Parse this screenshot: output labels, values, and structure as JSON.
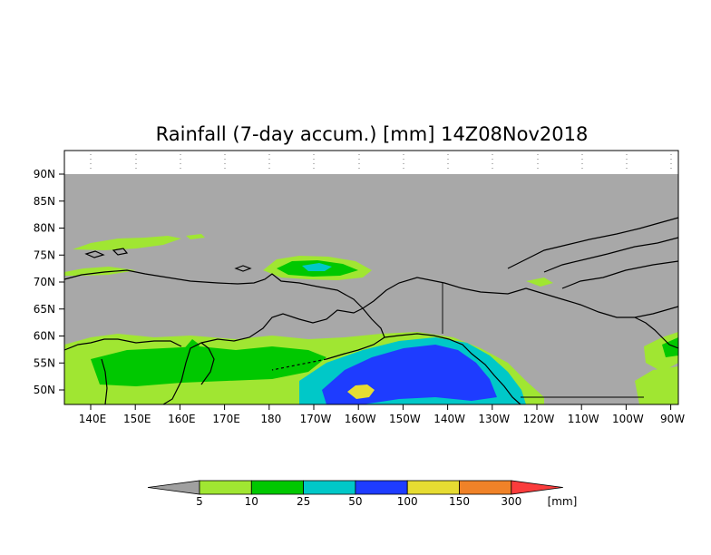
{
  "title": "Rainfall (7-day accum.) [mm] 14Z08Nov2018",
  "lat_labels": [
    "90N",
    "85N",
    "80N",
    "75N",
    "70N",
    "65N",
    "60N",
    "55N",
    "50N"
  ],
  "lon_labels": [
    "140E",
    "150E",
    "160E",
    "170E",
    "180",
    "170W",
    "160W",
    "150W",
    "140W",
    "130W",
    "120W",
    "110W",
    "100W",
    "90W"
  ],
  "legend": {
    "labels": [
      "5",
      "10",
      "25",
      "50",
      "100",
      "150",
      "300"
    ],
    "unit": "[mm]",
    "colors": [
      "#a0a0a0",
      "#a0e632",
      "#00c800",
      "#00c8c8",
      "#1e3cff",
      "#e6dc32",
      "#f08228",
      "#fa3c3c"
    ]
  },
  "colors": {
    "land_no_rain": "#a8a8a8",
    "coastline": "#000000"
  }
}
